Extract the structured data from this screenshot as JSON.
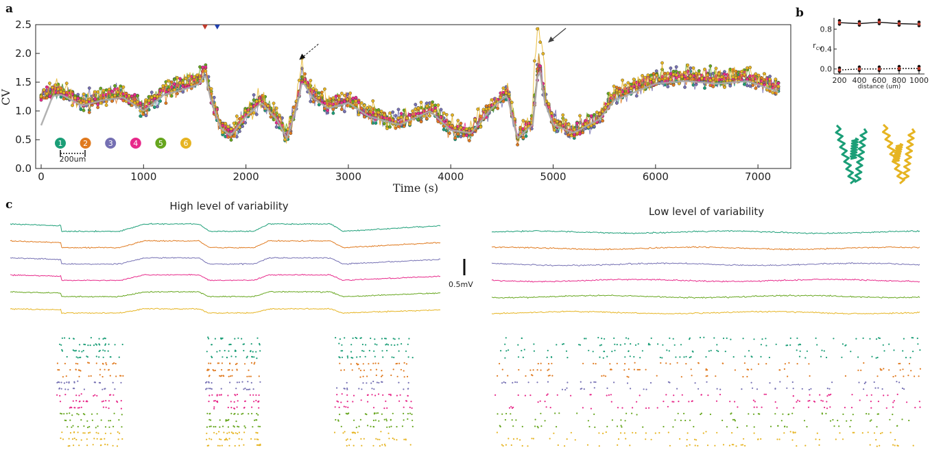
{
  "panel_labels": {
    "a": "a",
    "b": "b",
    "c": "c"
  },
  "colors": {
    "e1": "#1b9e77",
    "e2": "#e07a1f",
    "e3": "#7570b3",
    "e4": "#e7298a",
    "e5": "#66a61e",
    "e6": "#e6b422",
    "mean": "#aaaaaa",
    "red_marker": "#c0392b",
    "blue_marker": "#1f3fae"
  },
  "chart_data": [
    {
      "id": "cv_timecourse",
      "type": "line",
      "xlabel": "Time (s)",
      "ylabel": "CV",
      "xlim": [
        0,
        7200
      ],
      "ylim": [
        0,
        2.5
      ],
      "xticks": [
        "0",
        "1000",
        "2000",
        "3000",
        "4000",
        "5000",
        "6000",
        "7000"
      ],
      "yticks": [
        "0.0",
        "0.5",
        "1.0",
        "1.5",
        "2.0",
        "2.5"
      ],
      "electrodes": [
        "1",
        "2",
        "3",
        "4",
        "5",
        "6"
      ],
      "scale_bar": "200um",
      "markers": [
        {
          "kind": "triangle",
          "x": 1600,
          "color": "red"
        },
        {
          "kind": "triangle",
          "x": 1720,
          "color": "blue"
        },
        {
          "kind": "dashed-arrow",
          "x": 2520,
          "y": 1.9
        },
        {
          "kind": "solid-arrow",
          "x": 4950,
          "y": 2.2
        }
      ],
      "envelope": [
        [
          0,
          1.3
        ],
        [
          200,
          1.35
        ],
        [
          400,
          1.15
        ],
        [
          600,
          1.25
        ],
        [
          800,
          1.3
        ],
        [
          1000,
          1.05
        ],
        [
          1200,
          1.35
        ],
        [
          1400,
          1.45
        ],
        [
          1550,
          1.55
        ],
        [
          1600,
          1.75
        ],
        [
          1650,
          1.3
        ],
        [
          1750,
          0.75
        ],
        [
          1850,
          0.6
        ],
        [
          2000,
          0.95
        ],
        [
          2150,
          1.2
        ],
        [
          2300,
          0.9
        ],
        [
          2400,
          0.55
        ],
        [
          2500,
          1.15
        ],
        [
          2550,
          1.6
        ],
        [
          2650,
          1.3
        ],
        [
          2800,
          1.1
        ],
        [
          3000,
          1.2
        ],
        [
          3200,
          0.95
        ],
        [
          3500,
          0.8
        ],
        [
          3800,
          1.05
        ],
        [
          4000,
          0.7
        ],
        [
          4200,
          0.65
        ],
        [
          4400,
          1.1
        ],
        [
          4550,
          1.35
        ],
        [
          4650,
          0.55
        ],
        [
          4800,
          0.8
        ],
        [
          4860,
          1.9
        ],
        [
          4920,
          1.2
        ],
        [
          5000,
          0.8
        ],
        [
          5200,
          0.65
        ],
        [
          5450,
          0.9
        ],
        [
          5600,
          1.25
        ],
        [
          5800,
          1.4
        ],
        [
          6000,
          1.55
        ],
        [
          6300,
          1.6
        ],
        [
          6600,
          1.55
        ],
        [
          6900,
          1.6
        ],
        [
          7200,
          1.4
        ]
      ]
    },
    {
      "id": "correlation_vs_distance",
      "type": "scatter",
      "xlabel": "distance (um)",
      "ylabel": "r",
      "ylabel_sub": "cv",
      "xticks": [
        "200",
        "400",
        "600",
        "800",
        "1000"
      ],
      "yticks": [
        "0.0",
        "0.4",
        "0.8"
      ],
      "x": [
        200,
        400,
        600,
        800,
        1000
      ],
      "series": [
        {
          "style": "solid",
          "values": [
            0.93,
            0.91,
            0.94,
            0.91,
            0.9
          ]
        },
        {
          "style": "dotted",
          "values": [
            -0.02,
            0.0,
            0.0,
            0.01,
            0.01
          ]
        }
      ]
    },
    {
      "id": "lfp_traces",
      "type": "line",
      "left_title": "High level of variability",
      "right_title": "Low level of variability",
      "scale_bar_label": "0.5mV"
    }
  ]
}
